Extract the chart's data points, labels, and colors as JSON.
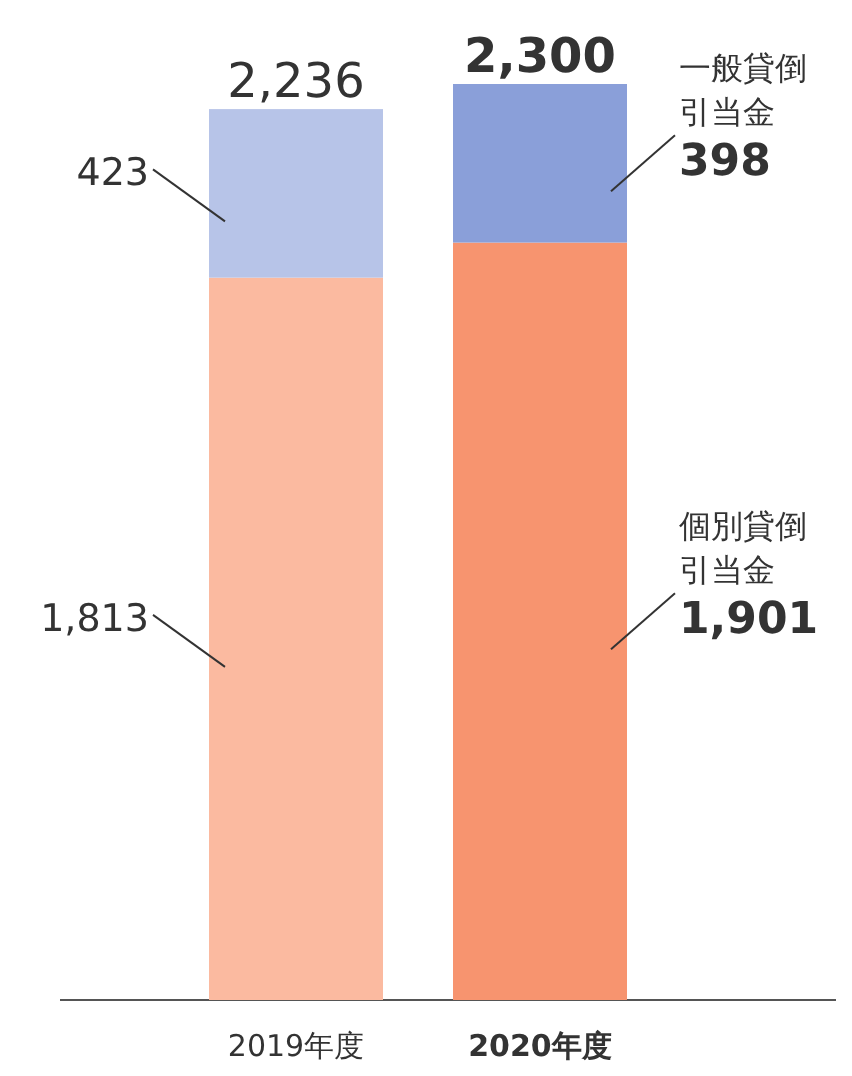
{
  "chart_data": {
    "type": "bar",
    "stacked": true,
    "categories": [
      "2019年度",
      "2020年度"
    ],
    "series": [
      {
        "name": "個別貸倒引当金",
        "colors": [
          "#fbbaa0",
          "#f7946f"
        ],
        "values": [
          1813,
          1901
        ],
        "value_labels": [
          "1,813",
          "1,901"
        ]
      },
      {
        "name": "一般貸倒引当金",
        "colors": [
          "#b7c4e8",
          "#8a9fd9"
        ],
        "values": [
          423,
          398
        ],
        "value_labels": [
          "423",
          "398"
        ]
      }
    ],
    "totals": [
      "2,236",
      "2,300"
    ],
    "legend": false
  }
}
